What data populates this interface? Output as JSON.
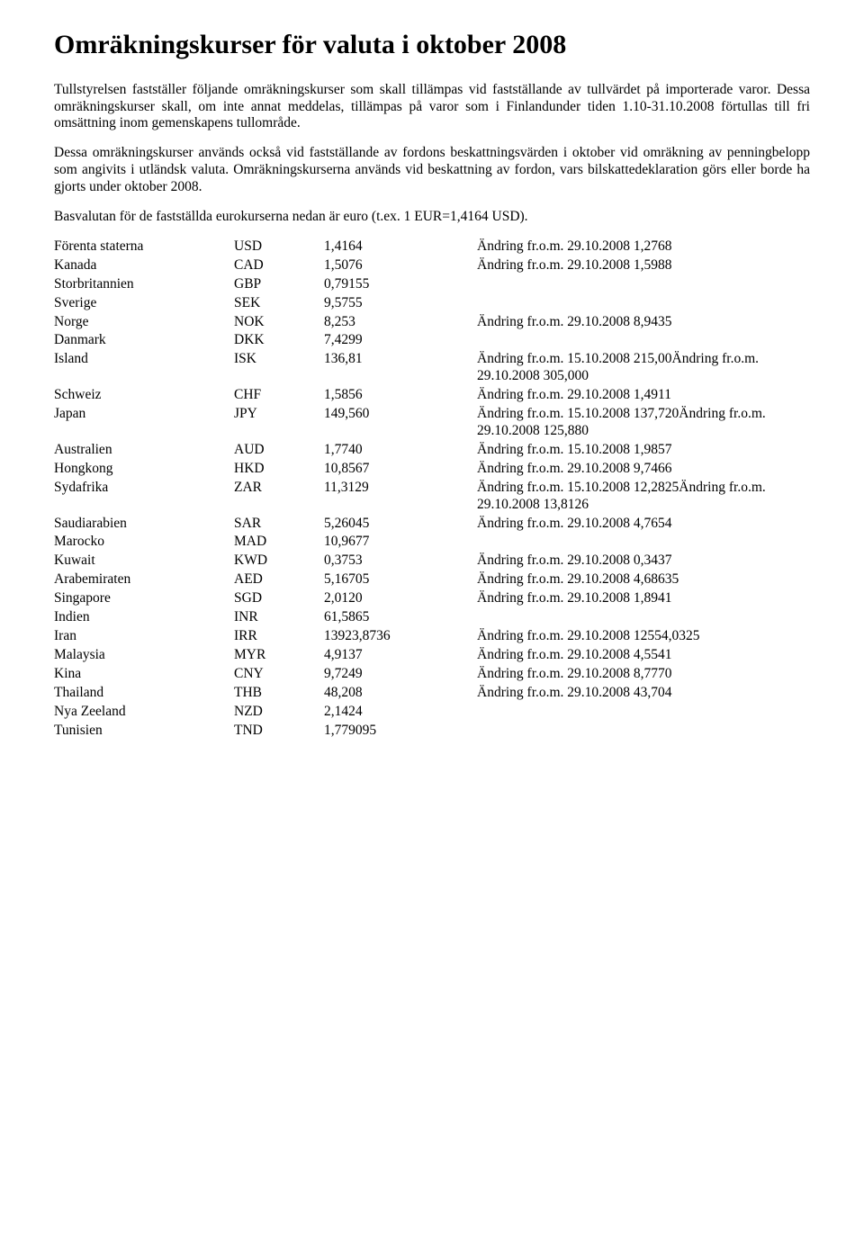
{
  "title": "Omräkningskurser för valuta i oktober 2008",
  "p1": "Tullstyrelsen fastställer följande omräkningskurser som skall tillämpas vid fastställande av tullvärdet på importerade varor. Dessa omräkningskurser skall, om inte annat meddelas, tillämpas på varor som i Finlandunder tiden 1.10-31.10.2008 förtullas till fri omsättning inom gemenskapens tullområde.",
  "p2": "Dessa omräkningskurser används också vid fastställande av fordons beskattningsvärden i oktober vid omräkning av penningbelopp som angivits i utländsk valuta. Omräkningskurserna används vid beskattning av fordon, vars bilskattedeklaration görs eller borde ha gjorts under oktober 2008.",
  "p3": "Basvalutan för de fastställda eurokurserna nedan är euro (t.ex.  1 EUR=1,4164 USD).",
  "rows": [
    {
      "country": "Förenta staterna",
      "code": "USD",
      "value": "1,4164",
      "note": "Ändring fr.o.m. 29.10.2008 1,2768"
    },
    {
      "country": "Kanada",
      "code": "CAD",
      "value": "1,5076",
      "note": "Ändring fr.o.m. 29.10.2008 1,5988"
    },
    {
      "country": "Storbritannien",
      "code": "GBP",
      "value": "0,79155",
      "note": ""
    },
    {
      "country": "Sverige",
      "code": "SEK",
      "value": "9,5755",
      "note": ""
    },
    {
      "country": "Norge",
      "code": "NOK",
      "value": "8,253",
      "note": "Ändring fr.o.m. 29.10.2008 8,9435"
    },
    {
      "country": "Danmark",
      "code": "DKK",
      "value": "7,4299",
      "note": ""
    },
    {
      "country": "Island",
      "code": "ISK",
      "value": "136,81",
      "note": "Ändring fr.o.m. 15.10.2008 215,00Ändring fr.o.m. 29.10.2008 305,000"
    },
    {
      "country": "Schweiz",
      "code": "CHF",
      "value": "1,5856",
      "note": "Ändring fr.o.m. 29.10.2008 1,4911"
    },
    {
      "country": "Japan",
      "code": "JPY",
      "value": "149,560",
      "note": "Ändring fr.o.m. 15.10.2008 137,720Ändring fr.o.m. 29.10.2008 125,880"
    },
    {
      "country": "Australien",
      "code": "AUD",
      "value": "1,7740",
      "note": "Ändring fr.o.m. 15.10.2008 1,9857"
    },
    {
      "country": "Hongkong",
      "code": "HKD",
      "value": "10,8567",
      "note": "Ändring fr.o.m. 29.10.2008 9,7466"
    },
    {
      "country": "Sydafrika",
      "code": "ZAR",
      "value": "11,3129",
      "note": "Ändring fr.o.m. 15.10.2008 12,2825Ändring fr.o.m. 29.10.2008 13,8126"
    },
    {
      "country": "Saudiarabien",
      "code": "SAR",
      "value": "5,26045",
      "note": "Ändring fr.o.m. 29.10.2008 4,7654"
    },
    {
      "country": "Marocko",
      "code": "MAD",
      "value": "10,9677",
      "note": ""
    },
    {
      "country": "Kuwait",
      "code": "KWD",
      "value": "0,3753",
      "note": "Ändring fr.o.m. 29.10.2008 0,3437"
    },
    {
      "country": "Arabemiraten",
      "code": "AED",
      "value": "5,16705",
      "note": "Ändring fr.o.m. 29.10.2008 4,68635"
    },
    {
      "country": "Singapore",
      "code": "SGD",
      "value": "2,0120",
      "note": "Ändring fr.o.m. 29.10.2008 1,8941"
    },
    {
      "country": "Indien",
      "code": "INR",
      "value": "61,5865",
      "note": ""
    },
    {
      "country": "Iran",
      "code": "IRR",
      "value": "13923,8736",
      "note": "Ändring fr.o.m. 29.10.2008 12554,0325"
    },
    {
      "country": "Malaysia",
      "code": "MYR",
      "value": "4,9137",
      "note": "Ändring fr.o.m. 29.10.2008 4,5541"
    },
    {
      "country": "Kina",
      "code": "CNY",
      "value": "9,7249",
      "note": "Ändring fr.o.m. 29.10.2008 8,7770"
    },
    {
      "country": "Thailand",
      "code": "THB",
      "value": "48,208",
      "note": "Ändring fr.o.m. 29.10.2008 43,704"
    },
    {
      "country": "Nya Zeeland",
      "code": "NZD",
      "value": "2,1424",
      "note": ""
    },
    {
      "country": "Tunisien",
      "code": "TND",
      "value": "1,779095",
      "note": ""
    }
  ]
}
